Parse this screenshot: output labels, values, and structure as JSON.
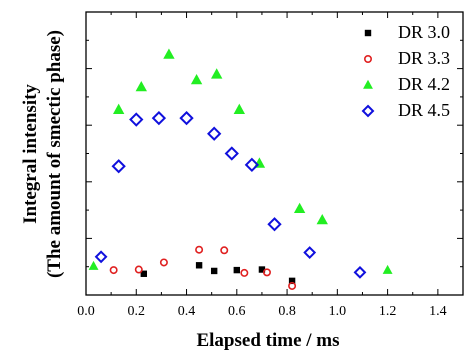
{
  "chart_data": {
    "type": "scatter",
    "title": "",
    "xlabel": "Elapsed time / ms",
    "ylabel_line1": "Integral intensity",
    "ylabel_line2": "(The amount of smectic phase)",
    "xlim": [
      0.0,
      1.5
    ],
    "ylim": [
      0.0,
      1.0
    ],
    "xticks": [
      "0.0",
      "0.2",
      "0.4",
      "0.6",
      "0.8",
      "1.0",
      "1.2",
      "1.4"
    ],
    "yticks_labeled": false,
    "legend_position": "top-right",
    "series": [
      {
        "name": "DR 3.0",
        "marker": "square-filled",
        "color": "#000000",
        "points": [
          [
            0.23,
            0.075
          ],
          [
            0.45,
            0.105
          ],
          [
            0.51,
            0.085
          ],
          [
            0.6,
            0.088
          ],
          [
            0.7,
            0.09
          ],
          [
            0.82,
            0.05
          ]
        ]
      },
      {
        "name": "DR 3.3",
        "marker": "circle-open",
        "color": "#e02020",
        "points": [
          [
            0.11,
            0.088
          ],
          [
            0.21,
            0.09
          ],
          [
            0.31,
            0.115
          ],
          [
            0.45,
            0.16
          ],
          [
            0.55,
            0.158
          ],
          [
            0.63,
            0.078
          ],
          [
            0.72,
            0.08
          ],
          [
            0.82,
            0.032
          ]
        ]
      },
      {
        "name": "DR 4.2",
        "marker": "triangle-filled",
        "color": "#22ee22",
        "points": [
          [
            0.03,
            0.102
          ],
          [
            0.13,
            0.655
          ],
          [
            0.22,
            0.735
          ],
          [
            0.33,
            0.85
          ],
          [
            0.44,
            0.76
          ],
          [
            0.52,
            0.78
          ],
          [
            0.61,
            0.655
          ],
          [
            0.69,
            0.465
          ],
          [
            0.85,
            0.305
          ],
          [
            0.94,
            0.265
          ],
          [
            1.2,
            0.088
          ]
        ]
      },
      {
        "name": "DR 4.5",
        "marker": "diamond-open",
        "color": "#1010dd",
        "points": [
          [
            0.06,
            0.135
          ],
          [
            0.13,
            0.455
          ],
          [
            0.2,
            0.62
          ],
          [
            0.29,
            0.625
          ],
          [
            0.4,
            0.625
          ],
          [
            0.51,
            0.57
          ],
          [
            0.58,
            0.5
          ],
          [
            0.66,
            0.46
          ],
          [
            0.75,
            0.25
          ],
          [
            0.89,
            0.15
          ],
          [
            1.09,
            0.08
          ]
        ]
      }
    ]
  }
}
